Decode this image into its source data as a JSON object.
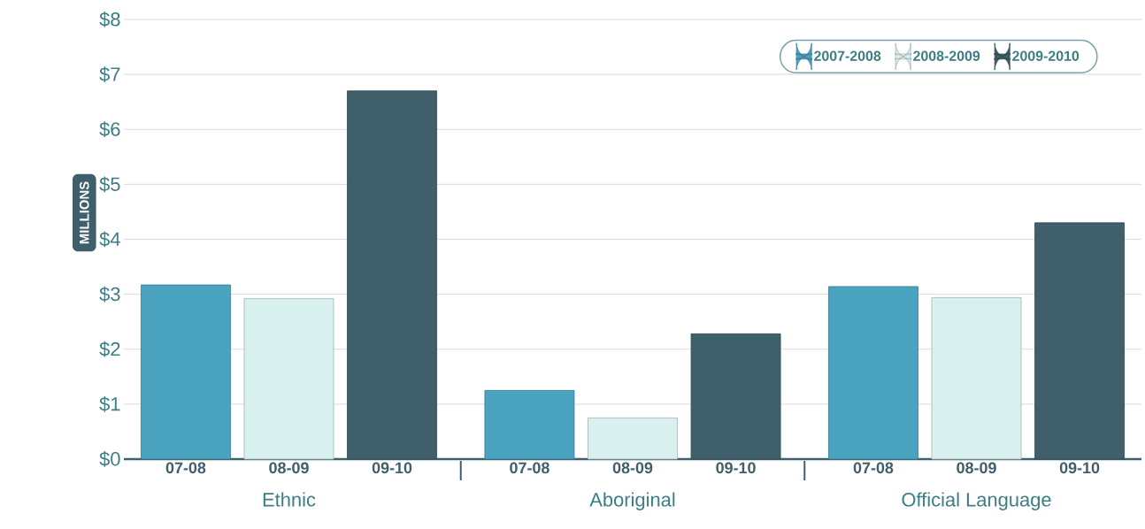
{
  "chart_data": {
    "type": "bar",
    "ylabel": "MILLIONS",
    "categories": [
      "Ethnic",
      "Aboriginal",
      "Official Language"
    ],
    "series": [
      {
        "name": "2007-2008",
        "color": "#4aa3bf",
        "values": [
          3.17,
          1.25,
          3.14
        ]
      },
      {
        "name": "2008-2009",
        "color": "#d8f0ee",
        "values": [
          2.92,
          0.75,
          2.94
        ]
      },
      {
        "name": "2009-2010",
        "color": "#3f5f6b",
        "values": [
          6.7,
          2.28,
          4.3
        ]
      }
    ],
    "ylim": [
      0,
      8
    ],
    "yticks": [
      {
        "value": 0,
        "label": "$0"
      },
      {
        "value": 1,
        "label": "$1"
      },
      {
        "value": 2,
        "label": "$2"
      },
      {
        "value": 3,
        "label": "$3"
      },
      {
        "value": 4,
        "label": "$4"
      },
      {
        "value": 5,
        "label": "$5"
      },
      {
        "value": 6,
        "label": "$6"
      },
      {
        "value": 7,
        "label": "$7"
      },
      {
        "value": 8,
        "label": "$8"
      }
    ],
    "grid": "y",
    "legend": "top right",
    "annotations": [
      "07-08",
      "08-09",
      "09-10",
      "07-08",
      "08-09",
      "09-10",
      "07-08",
      "08-09",
      "09-10"
    ]
  }
}
